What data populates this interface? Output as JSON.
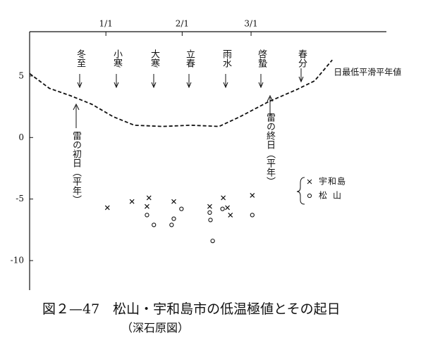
{
  "chart_data": {
    "type": "scatter",
    "title": "図２—47　松山・宇和島市の低温極値とその起日",
    "subtitle": "（深石原図）",
    "xlim": [
      -31,
      114
    ],
    "xticks": [
      {
        "value": 0,
        "label": "1/1"
      },
      {
        "value": 31,
        "label": "2/1"
      },
      {
        "value": 59,
        "label": "3/1"
      }
    ],
    "ylim": [
      -12.4,
      8.6
    ],
    "yticks": [
      5,
      0,
      -5,
      -10
    ],
    "series": [
      {
        "name": "日最低平滑平年値",
        "style": "dashed-line",
        "color": "#111",
        "x": [
          -31,
          -23,
          -14.4,
          -5.7,
          2.9,
          11.5,
          23,
          34.5,
          46,
          54.6,
          66,
          77.6,
          84.8,
          92
        ],
        "values": [
          5.2,
          4.0,
          3.4,
          2.7,
          1.7,
          1.0,
          0.9,
          1.0,
          0.9,
          1.7,
          2.9,
          3.9,
          4.6,
          6.3
        ]
      },
      {
        "name": "宇和島",
        "style": "cross",
        "color": "#111",
        "x": [
          0.6,
          10.6,
          17.5,
          16.7,
          27.6,
          42.2,
          47.7,
          49.4,
          50.6,
          59.5
        ],
        "values": [
          -5.7,
          -5.2,
          -4.9,
          -5.6,
          -5.2,
          -5.6,
          -4.9,
          -5.7,
          -6.3,
          -4.7
        ]
      },
      {
        "name": "松山",
        "style": "circle",
        "color": "#111",
        "x": [
          16.7,
          19.5,
          27.6,
          26.7,
          30.7,
          42.2,
          42.5,
          43.4,
          47.4,
          59.5
        ],
        "values": [
          -6.3,
          -7.1,
          -6.6,
          -7.1,
          -5.8,
          -6.1,
          -6.7,
          -8.4,
          -5.8,
          -6.3
        ]
      }
    ],
    "solar_terms": [
      "冬至",
      "小寒",
      "大寒",
      "立春",
      "雨水",
      "啓蟄",
      "春分"
    ],
    "thunder_first": "雷の初日（平年）",
    "thunder_last": "雷の終日（平年）"
  }
}
